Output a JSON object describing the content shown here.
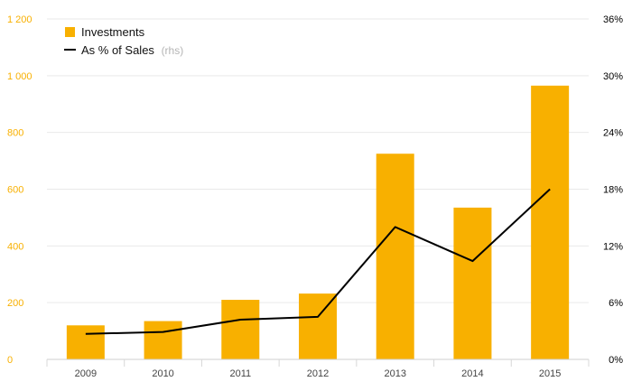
{
  "chart_data": {
    "type": "bar",
    "categories": [
      "2009",
      "2010",
      "2011",
      "2012",
      "2013",
      "2014",
      "2015"
    ],
    "series": [
      {
        "name": "Investments",
        "type": "bar",
        "axis": "left",
        "color": "#F8B000",
        "values": [
          120,
          135,
          210,
          232,
          725,
          535,
          965
        ]
      },
      {
        "name": "As % of Sales",
        "name_suffix": "(rhs)",
        "type": "line",
        "axis": "right",
        "color": "#000000",
        "values": [
          2.7,
          2.9,
          4.2,
          4.5,
          14.0,
          10.4,
          18.0
        ]
      }
    ],
    "y_left": {
      "ylim": [
        0,
        1200
      ],
      "ticks": [
        "0",
        "200",
        "400",
        "600",
        "800",
        "1 000",
        "1 200"
      ],
      "tick_values": [
        0,
        200,
        400,
        600,
        800,
        1000,
        1200
      ],
      "tick_color": "#F8B000"
    },
    "y_right": {
      "ylim": [
        0,
        36
      ],
      "ticks": [
        "0%",
        "6%",
        "12%",
        "18%",
        "24%",
        "30%",
        "36%"
      ],
      "tick_values": [
        0,
        6,
        12,
        18,
        24,
        30,
        36
      ]
    },
    "grid": true,
    "legend_position": "top-left",
    "title": "",
    "xlabel": "",
    "ylabel": ""
  }
}
